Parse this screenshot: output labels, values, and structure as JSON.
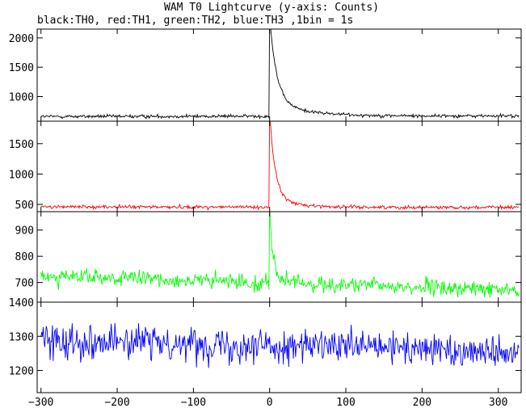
{
  "chart_data": {
    "type": "line",
    "title": "WAM T0 Lightcurve (y-axis: Counts)",
    "subtitle": "black:TH0, red:TH1, green:TH2, blue:TH3 ,1bin = 1s",
    "xlim": [
      -305,
      330
    ],
    "x_ticks": [
      -300,
      -200,
      -100,
      0,
      100,
      200,
      300
    ],
    "x_tick_labels": [
      "−300",
      "−200",
      "−100",
      "0",
      "100",
      "200",
      "300"
    ],
    "panels": [
      {
        "name": "TH0",
        "color": "#000000",
        "ylim": [
          580,
          2150
        ],
        "y_ticks": [
          1000,
          1500,
          2000
        ],
        "y_tick_labels": [
          "1000",
          "1500",
          "2000"
        ],
        "baseline": 660,
        "noise": 16,
        "peak": 2130,
        "peak_time": 0,
        "decay_time": 9,
        "tail_amp": 250,
        "tail_decay": 45,
        "drift": [
          [
            -300,
            660
          ],
          [
            330,
            670
          ]
        ]
      },
      {
        "name": "TH1",
        "color": "#ff0000",
        "ylim": [
          380,
          1870
        ],
        "y_ticks": [
          500,
          1000,
          1500
        ],
        "y_tick_labels": [
          "500",
          "1000",
          "1500"
        ],
        "baseline": 460,
        "noise": 16,
        "peak": 1870,
        "peak_time": 0,
        "decay_time": 7,
        "tail_amp": 170,
        "tail_decay": 28,
        "drift": [
          [
            -300,
            460
          ],
          [
            330,
            450
          ]
        ]
      },
      {
        "name": "TH2",
        "color": "#00ff00",
        "ylim": [
          625,
          970
        ],
        "y_ticks": [
          700,
          800,
          900
        ],
        "y_tick_labels": [
          "700",
          "800",
          "900"
        ],
        "baseline": 715,
        "noise": 17,
        "peak": 960,
        "peak_time": 0,
        "decay_time": 4,
        "tail_amp": 40,
        "tail_decay": 12,
        "drift": [
          [
            -300,
            725
          ],
          [
            330,
            670
          ]
        ]
      },
      {
        "name": "TH3",
        "color": "#0000ff",
        "ylim": [
          1135,
          1400
        ],
        "y_ticks": [
          1200,
          1300,
          1400
        ],
        "y_tick_labels": [
          "1200",
          "1300",
          "1400"
        ],
        "baseline": 1285,
        "noise": 27,
        "peak": 0,
        "peak_time": 0,
        "decay_time": 1,
        "tail_amp": 0,
        "tail_decay": 1,
        "drift": [
          [
            -300,
            1290
          ],
          [
            330,
            1255
          ]
        ]
      }
    ]
  }
}
